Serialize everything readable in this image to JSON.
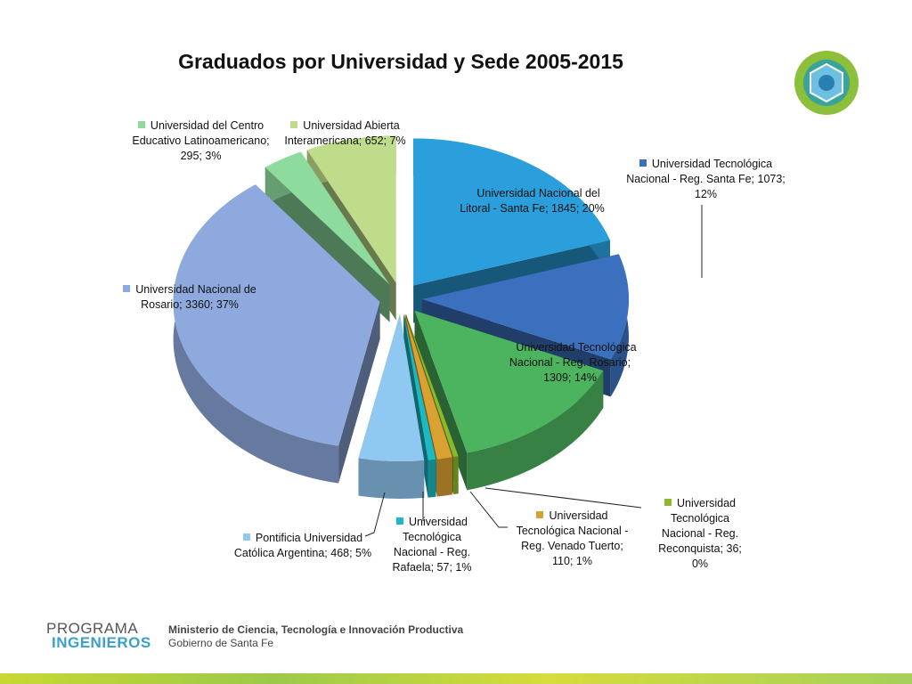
{
  "chart_data": {
    "type": "pie3d",
    "title": "Graduados por Universidad y Sede 2005-2015",
    "categories": [
      "Universidad Nacional del Litoral - Santa Fe; 1845; 20%",
      "Universidad Tecnológica Nacional - Reg. Santa Fe; 1073; 12%",
      "Universidad Tecnológica Nacional - Reg. Rosario; 1309; 14%",
      "Universidad Tecnológica Nacional - Reg. Reconquista; 36; 0%",
      "Universidad Tecnológica Nacional - Reg. Venado Tuerto; 110; 1%",
      "Universidad Tecnológica Nacional - Reg. Rafaela; 57; 1%",
      "Pontificia Universidad Católica Argentina; 468; 5%",
      "Universidad Nacional de Rosario; 3360; 37%",
      "Universidad del Centro Educativo Latinoamericano; 295; 3%",
      "Universidad Abierta Interamericana; 652; 7%"
    ],
    "values": [
      1845,
      1073,
      1309,
      36,
      110,
      57,
      468,
      3360,
      295,
      652
    ],
    "colors": [
      "#2a9fdc",
      "#3b70bf",
      "#4cb35e",
      "#8cb82c",
      "#d9a032",
      "#1bb9c2",
      "#8fc9f2",
      "#8ea9dd",
      "#8ddc9d",
      "#bfdc8b"
    ]
  },
  "footer": {
    "logo_line1": "PROGRAMA",
    "logo_line2": "INGENIEROS",
    "ministry": "Ministerio de Ciencia, Tecnología e Innovación Productiva",
    "government": "Gobierno de Santa Fe"
  }
}
